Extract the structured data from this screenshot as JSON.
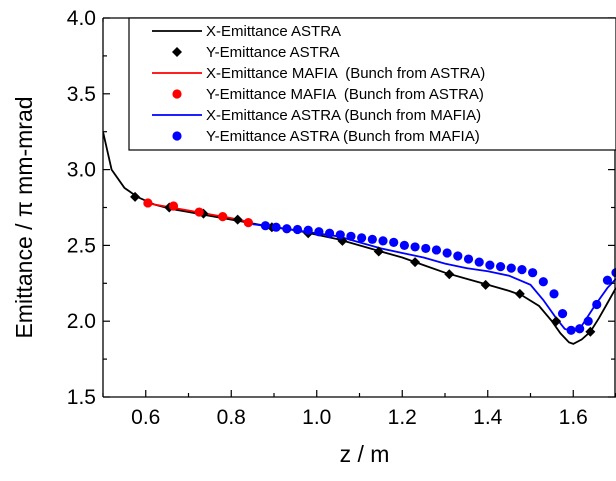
{
  "chart_data": {
    "type": "line",
    "xlabel": "z / m",
    "ylabel": "Emittance / π mm-mrad",
    "xlim": [
      0.5,
      1.7
    ],
    "ylim": [
      1.5,
      4.0
    ],
    "x_ticks": [
      0.6,
      0.8,
      1.0,
      1.2,
      1.4,
      1.6
    ],
    "x_tick_labels": [
      "0.6",
      "0.8",
      "1.0",
      "1.2",
      "1.4",
      "1.6"
    ],
    "y_ticks": [
      1.5,
      2.0,
      2.5,
      3.0,
      3.5,
      4.0
    ],
    "y_tick_labels": [
      "1.5",
      "2.0",
      "2.5",
      "3.0",
      "3.5",
      "4.0"
    ],
    "grid": false,
    "legend_position": "top-right",
    "series": [
      {
        "name": "X-Emittance ASTRA",
        "style": "line",
        "color": "#000000",
        "points": [
          [
            0.5,
            3.25
          ],
          [
            0.52,
            3.0
          ],
          [
            0.55,
            2.88
          ],
          [
            0.58,
            2.82
          ],
          [
            0.62,
            2.77
          ],
          [
            0.66,
            2.74
          ],
          [
            0.7,
            2.72
          ],
          [
            0.74,
            2.7
          ],
          [
            0.78,
            2.68
          ],
          [
            0.82,
            2.66
          ],
          [
            0.86,
            2.64
          ],
          [
            0.9,
            2.62
          ],
          [
            0.95,
            2.6
          ],
          [
            1.0,
            2.57
          ],
          [
            1.05,
            2.54
          ],
          [
            1.1,
            2.5
          ],
          [
            1.15,
            2.46
          ],
          [
            1.2,
            2.42
          ],
          [
            1.25,
            2.37
          ],
          [
            1.3,
            2.32
          ],
          [
            1.35,
            2.28
          ],
          [
            1.4,
            2.24
          ],
          [
            1.45,
            2.2
          ],
          [
            1.48,
            2.17
          ],
          [
            1.52,
            2.1
          ],
          [
            1.55,
            2.0
          ],
          [
            1.57,
            1.92
          ],
          [
            1.59,
            1.86
          ],
          [
            1.6,
            1.85
          ],
          [
            1.62,
            1.88
          ],
          [
            1.64,
            1.93
          ],
          [
            1.66,
            2.02
          ],
          [
            1.68,
            2.12
          ],
          [
            1.7,
            2.22
          ]
        ]
      },
      {
        "name": "Y-Emittance ASTRA",
        "style": "diamond",
        "color": "#000000",
        "points": [
          [
            0.575,
            2.82
          ],
          [
            0.655,
            2.75
          ],
          [
            0.735,
            2.71
          ],
          [
            0.815,
            2.67
          ],
          [
            0.895,
            2.62
          ],
          [
            0.98,
            2.58
          ],
          [
            1.06,
            2.53
          ],
          [
            1.145,
            2.46
          ],
          [
            1.23,
            2.39
          ],
          [
            1.31,
            2.31
          ],
          [
            1.395,
            2.24
          ],
          [
            1.475,
            2.18
          ],
          [
            1.56,
            2.0
          ],
          [
            1.64,
            1.93
          ]
        ]
      },
      {
        "name": "X-Emittance MAFIA  (Bunch from ASTRA)",
        "style": "line",
        "color": "#ff0000",
        "points": [
          [
            0.6,
            2.78
          ],
          [
            0.64,
            2.76
          ],
          [
            0.68,
            2.74
          ],
          [
            0.72,
            2.72
          ],
          [
            0.76,
            2.7
          ],
          [
            0.8,
            2.68
          ],
          [
            0.85,
            2.65
          ]
        ]
      },
      {
        "name": "Y-Emittance MAFIA  (Bunch from ASTRA)",
        "style": "circle",
        "color": "#ff0000",
        "points": [
          [
            0.605,
            2.78
          ],
          [
            0.665,
            2.76
          ],
          [
            0.725,
            2.72
          ],
          [
            0.78,
            2.69
          ],
          [
            0.84,
            2.65
          ]
        ]
      },
      {
        "name": "X-Emittance ASTRA (Bunch from MAFIA)",
        "style": "line",
        "color": "#0000ff",
        "points": [
          [
            0.85,
            2.64
          ],
          [
            0.9,
            2.62
          ],
          [
            0.95,
            2.6
          ],
          [
            1.0,
            2.58
          ],
          [
            1.05,
            2.56
          ],
          [
            1.1,
            2.52
          ],
          [
            1.15,
            2.48
          ],
          [
            1.2,
            2.45
          ],
          [
            1.25,
            2.42
          ],
          [
            1.3,
            2.38
          ],
          [
            1.35,
            2.35
          ],
          [
            1.4,
            2.33
          ],
          [
            1.45,
            2.3
          ],
          [
            1.5,
            2.24
          ],
          [
            1.53,
            2.14
          ],
          [
            1.56,
            2.02
          ],
          [
            1.58,
            1.95
          ],
          [
            1.6,
            1.93
          ],
          [
            1.62,
            1.97
          ],
          [
            1.65,
            2.1
          ],
          [
            1.68,
            2.22
          ],
          [
            1.7,
            2.28
          ]
        ]
      },
      {
        "name": "Y-Emittance ASTRA (Bunch from MAFIA)",
        "style": "circle",
        "color": "#0000ff",
        "points": [
          [
            0.88,
            2.63
          ],
          [
            0.905,
            2.62
          ],
          [
            0.93,
            2.61
          ],
          [
            0.955,
            2.605
          ],
          [
            0.98,
            2.6
          ],
          [
            1.005,
            2.59
          ],
          [
            1.03,
            2.58
          ],
          [
            1.055,
            2.57
          ],
          [
            1.08,
            2.56
          ],
          [
            1.105,
            2.55
          ],
          [
            1.13,
            2.54
          ],
          [
            1.155,
            2.53
          ],
          [
            1.18,
            2.52
          ],
          [
            1.205,
            2.5
          ],
          [
            1.23,
            2.49
          ],
          [
            1.255,
            2.48
          ],
          [
            1.28,
            2.47
          ],
          [
            1.305,
            2.45
          ],
          [
            1.33,
            2.43
          ],
          [
            1.355,
            2.41
          ],
          [
            1.38,
            2.39
          ],
          [
            1.405,
            2.37
          ],
          [
            1.43,
            2.36
          ],
          [
            1.455,
            2.35
          ],
          [
            1.48,
            2.34
          ],
          [
            1.505,
            2.32
          ],
          [
            1.53,
            2.26
          ],
          [
            1.555,
            2.18
          ],
          [
            1.575,
            2.05
          ],
          [
            1.595,
            1.94
          ],
          [
            1.615,
            1.95
          ],
          [
            1.635,
            2.0
          ],
          [
            1.655,
            2.11
          ],
          [
            1.68,
            2.27
          ],
          [
            1.7,
            2.32
          ]
        ]
      }
    ]
  }
}
